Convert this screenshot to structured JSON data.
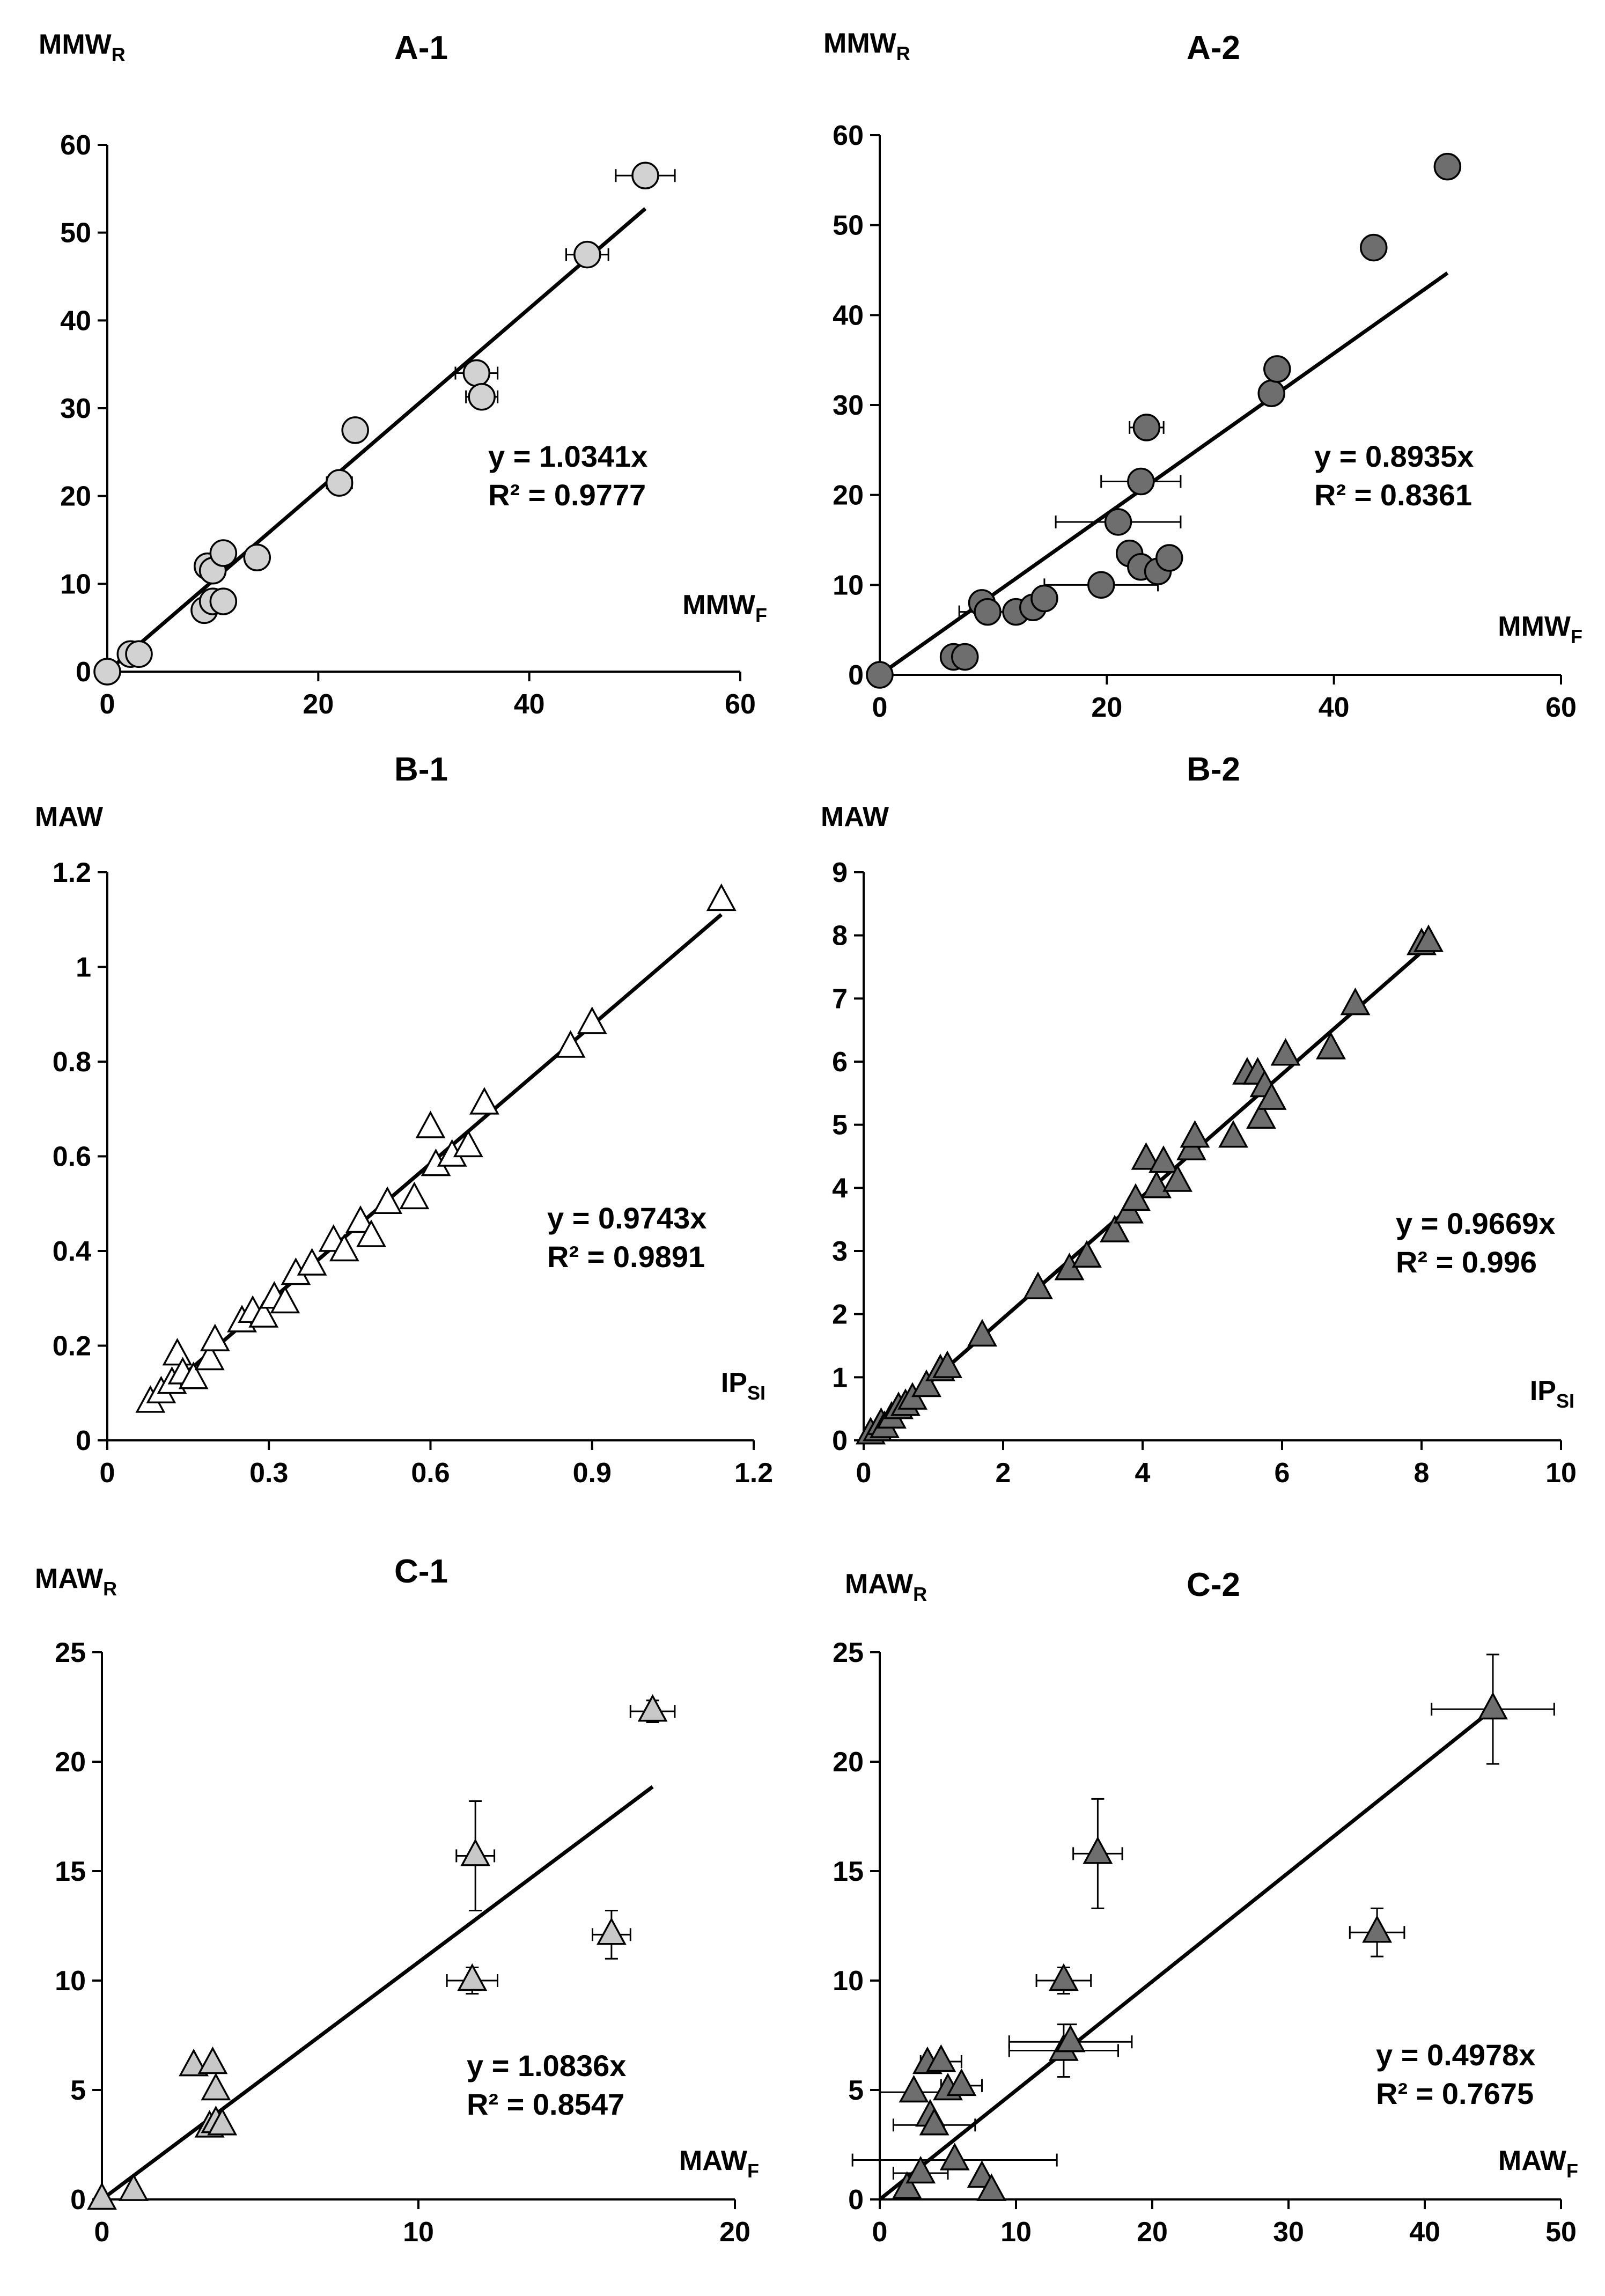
{
  "chart_data": [
    {
      "type": "scatter",
      "id": "A-1",
      "title": "A-1",
      "ylabel": {
        "base": "MMW",
        "sub": "R"
      },
      "xlabel": {
        "base": "MMW",
        "sub": "F"
      },
      "xlim": [
        0,
        60
      ],
      "ylim": [
        0,
        60
      ],
      "xticks": [
        0,
        20,
        40,
        60
      ],
      "yticks": [
        0,
        10,
        20,
        30,
        40,
        50,
        60
      ],
      "tick_decimals": 0,
      "marker": "circle",
      "fill": "#d2d2d2",
      "equation": "y = 1.0341x",
      "r2": "R² = 0.9777",
      "trend_slope": 1.0341,
      "trend_x_end": 51,
      "points": [
        {
          "x": 0,
          "y": 0
        },
        {
          "x": 2.2,
          "y": 2
        },
        {
          "x": 3,
          "y": 2
        },
        {
          "x": 9.2,
          "y": 7
        },
        {
          "x": 9.5,
          "y": 12
        },
        {
          "x": 10,
          "y": 8
        },
        {
          "x": 10,
          "y": 11.5
        },
        {
          "x": 11,
          "y": 8
        },
        {
          "x": 11,
          "y": 13.5
        },
        {
          "x": 14.2,
          "y": 13
        },
        {
          "x": 22,
          "y": 21.5,
          "xerr": 1.2
        },
        {
          "x": 23.5,
          "y": 27.5
        },
        {
          "x": 35,
          "y": 34,
          "xerr": 2
        },
        {
          "x": 35.5,
          "y": 31.3,
          "xerr": 1.5
        },
        {
          "x": 45.5,
          "y": 47.5,
          "xerr": 2
        },
        {
          "x": 51,
          "y": 56.5,
          "xerr": 2.8
        }
      ]
    },
    {
      "type": "scatter",
      "id": "A-2",
      "title": "A-2",
      "ylabel": {
        "base": "MMW",
        "sub": "R"
      },
      "xlabel": {
        "base": "MMW",
        "sub": "F"
      },
      "xlim": [
        0,
        60
      ],
      "ylim": [
        0,
        60
      ],
      "xticks": [
        0,
        20,
        40,
        60
      ],
      "yticks": [
        0,
        10,
        20,
        30,
        40,
        50,
        60
      ],
      "tick_decimals": 0,
      "marker": "circle",
      "fill": "#6e6e6e",
      "equation": "y = 0.8935x",
      "r2": "R² = 0.8361",
      "trend_slope": 0.8935,
      "trend_x_end": 50,
      "points": [
        {
          "x": 0,
          "y": 0
        },
        {
          "x": 6.5,
          "y": 2
        },
        {
          "x": 7.5,
          "y": 2
        },
        {
          "x": 9,
          "y": 8
        },
        {
          "x": 9.5,
          "y": 7,
          "xerr": 2.5
        },
        {
          "x": 12,
          "y": 7
        },
        {
          "x": 13.5,
          "y": 7.5
        },
        {
          "x": 14.5,
          "y": 8.5
        },
        {
          "x": 19.5,
          "y": 10,
          "xerr": 5
        },
        {
          "x": 21,
          "y": 17,
          "xerr": 5.5
        },
        {
          "x": 22,
          "y": 13.5
        },
        {
          "x": 23,
          "y": 21.5,
          "xerr": 3.5
        },
        {
          "x": 23,
          "y": 12
        },
        {
          "x": 23.5,
          "y": 27.5,
          "xerr": 1.5
        },
        {
          "x": 24.5,
          "y": 11.5
        },
        {
          "x": 25.5,
          "y": 13
        },
        {
          "x": 34.5,
          "y": 31.3
        },
        {
          "x": 35,
          "y": 34
        },
        {
          "x": 43.5,
          "y": 47.5
        },
        {
          "x": 50,
          "y": 56.5
        }
      ]
    },
    {
      "type": "scatter",
      "id": "B-1",
      "title": "B-1",
      "ylabel": {
        "base": "MAW",
        "sub": ""
      },
      "xlabel": {
        "base": "IP",
        "sub": "SI"
      },
      "xlim": [
        0,
        1.2
      ],
      "ylim": [
        0,
        1.2
      ],
      "xticks": [
        0,
        0.3,
        0.6,
        0.9,
        1.2
      ],
      "yticks": [
        0,
        0.2,
        0.4,
        0.6,
        0.8,
        1,
        1.2
      ],
      "xtick_labels": [
        "0",
        "0.3",
        "0.6",
        "0.9",
        "1.2"
      ],
      "ytick_labels": [
        "0",
        "0.2",
        "0.4",
        "0.6",
        "0.8",
        "1",
        "1.2"
      ],
      "tick_decimals": 1,
      "marker": "triangle",
      "fill": "#ffffff",
      "equation": "y = 0.9743x",
      "r2": "R² = 0.9891",
      "trend_slope": 0.9743,
      "trend_x_start": 0.08,
      "trend_x_end": 1.14,
      "points": [
        {
          "x": 0.08,
          "y": 0.08
        },
        {
          "x": 0.1,
          "y": 0.1
        },
        {
          "x": 0.12,
          "y": 0.12
        },
        {
          "x": 0.13,
          "y": 0.18
        },
        {
          "x": 0.14,
          "y": 0.14
        },
        {
          "x": 0.16,
          "y": 0.13
        },
        {
          "x": 0.19,
          "y": 0.17
        },
        {
          "x": 0.2,
          "y": 0.21
        },
        {
          "x": 0.25,
          "y": 0.25
        },
        {
          "x": 0.27,
          "y": 0.27
        },
        {
          "x": 0.29,
          "y": 0.26
        },
        {
          "x": 0.31,
          "y": 0.3
        },
        {
          "x": 0.33,
          "y": 0.29
        },
        {
          "x": 0.35,
          "y": 0.35
        },
        {
          "x": 0.38,
          "y": 0.37
        },
        {
          "x": 0.42,
          "y": 0.42
        },
        {
          "x": 0.44,
          "y": 0.4
        },
        {
          "x": 0.47,
          "y": 0.46
        },
        {
          "x": 0.49,
          "y": 0.43
        },
        {
          "x": 0.52,
          "y": 0.5
        },
        {
          "x": 0.57,
          "y": 0.51
        },
        {
          "x": 0.6,
          "y": 0.66
        },
        {
          "x": 0.61,
          "y": 0.58
        },
        {
          "x": 0.64,
          "y": 0.6
        },
        {
          "x": 0.67,
          "y": 0.62
        },
        {
          "x": 0.7,
          "y": 0.71
        },
        {
          "x": 0.86,
          "y": 0.83
        },
        {
          "x": 0.9,
          "y": 0.88
        },
        {
          "x": 1.14,
          "y": 1.14
        }
      ]
    },
    {
      "type": "scatter",
      "id": "B-2",
      "title": "B-2",
      "ylabel": {
        "base": "MAW",
        "sub": ""
      },
      "xlabel": {
        "base": "IP",
        "sub": "SI"
      },
      "xlim": [
        0,
        10
      ],
      "ylim": [
        0,
        9
      ],
      "xticks": [
        0,
        2,
        4,
        6,
        8,
        10
      ],
      "yticks": [
        0,
        1,
        2,
        3,
        4,
        5,
        6,
        7,
        8,
        9
      ],
      "tick_decimals": 0,
      "marker": "triangle",
      "fill": "#6e6e6e",
      "equation": "y = 0.9669x",
      "r2": "R² = 0.996",
      "trend_slope": 0.9669,
      "trend_x_end": 8.2,
      "points": [
        {
          "x": 0.1,
          "y": 0.1
        },
        {
          "x": 0.2,
          "y": 0.15
        },
        {
          "x": 0.25,
          "y": 0.25
        },
        {
          "x": 0.3,
          "y": 0.2
        },
        {
          "x": 0.4,
          "y": 0.35
        },
        {
          "x": 0.5,
          "y": 0.5
        },
        {
          "x": 0.6,
          "y": 0.55
        },
        {
          "x": 0.7,
          "y": 0.65
        },
        {
          "x": 0.9,
          "y": 0.85
        },
        {
          "x": 1.1,
          "y": 1.1
        },
        {
          "x": 1.2,
          "y": 1.15
        },
        {
          "x": 1.7,
          "y": 1.65
        },
        {
          "x": 2.5,
          "y": 2.4
        },
        {
          "x": 2.95,
          "y": 2.7
        },
        {
          "x": 3.2,
          "y": 2.9
        },
        {
          "x": 3.6,
          "y": 3.3
        },
        {
          "x": 3.8,
          "y": 3.6
        },
        {
          "x": 3.9,
          "y": 3.8
        },
        {
          "x": 4.05,
          "y": 4.45
        },
        {
          "x": 4.2,
          "y": 4.0
        },
        {
          "x": 4.3,
          "y": 4.4
        },
        {
          "x": 4.5,
          "y": 4.1
        },
        {
          "x": 4.7,
          "y": 4.6
        },
        {
          "x": 4.75,
          "y": 4.8
        },
        {
          "x": 5.3,
          "y": 4.8
        },
        {
          "x": 5.5,
          "y": 5.8
        },
        {
          "x": 5.65,
          "y": 5.8
        },
        {
          "x": 5.7,
          "y": 5.1
        },
        {
          "x": 5.75,
          "y": 5.6
        },
        {
          "x": 5.85,
          "y": 5.4
        },
        {
          "x": 6.05,
          "y": 6.1
        },
        {
          "x": 6.7,
          "y": 6.2
        },
        {
          "x": 7.05,
          "y": 6.9
        },
        {
          "x": 8.0,
          "y": 7.85
        },
        {
          "x": 8.1,
          "y": 7.9
        }
      ]
    },
    {
      "type": "scatter",
      "id": "C-1",
      "title": "C-1",
      "ylabel": {
        "base": "MAW",
        "sub": "R"
      },
      "xlabel": {
        "base": "MAW",
        "sub": "F"
      },
      "xlim": [
        0,
        20
      ],
      "ylim": [
        0,
        25
      ],
      "xticks": [
        0,
        10,
        20
      ],
      "yticks": [
        0,
        5,
        10,
        15,
        20,
        25
      ],
      "tick_decimals": 0,
      "marker": "triangle",
      "fill": "#c8c8c8",
      "equation": "y = 1.0836x",
      "r2": "R² = 0.8547",
      "trend_slope": 1.0836,
      "trend_x_end": 17.4,
      "points": [
        {
          "x": 0,
          "y": 0
        },
        {
          "x": 1,
          "y": 0.4
        },
        {
          "x": 2.9,
          "y": 6.1
        },
        {
          "x": 3.4,
          "y": 3.3
        },
        {
          "x": 3.5,
          "y": 6.2
        },
        {
          "x": 3.6,
          "y": 3.5
        },
        {
          "x": 3.6,
          "y": 5.0
        },
        {
          "x": 3.8,
          "y": 3.4
        },
        {
          "x": 11.7,
          "y": 10.0,
          "xerr": 0.8,
          "yerr": 0.6
        },
        {
          "x": 11.8,
          "y": 15.7,
          "xerr": 0.6,
          "yerr": 2.5
        },
        {
          "x": 16.1,
          "y": 12.1,
          "xerr": 0.6,
          "yerr": 1.1
        },
        {
          "x": 17.4,
          "y": 22.3,
          "xerr": 0.7,
          "yerr": 0.5
        }
      ]
    },
    {
      "type": "scatter",
      "id": "C-2",
      "title": "C-2",
      "ylabel": {
        "base": "MAW",
        "sub": "R"
      },
      "xlabel": {
        "base": "MAW",
        "sub": "F"
      },
      "xlim": [
        0,
        50
      ],
      "ylim": [
        0,
        25
      ],
      "xticks": [
        0,
        10,
        20,
        30,
        40,
        50
      ],
      "yticks": [
        0,
        5,
        10,
        15,
        20,
        25
      ],
      "tick_decimals": 0,
      "marker": "triangle",
      "fill": "#6e6e6e",
      "equation": "y = 0.4978x",
      "r2": "R² = 0.7675",
      "trend_slope": 0.4978,
      "trend_x_end": 45,
      "points": [
        {
          "x": 2,
          "y": 0.5
        },
        {
          "x": 2.5,
          "y": 4.9,
          "xerr": 2.5
        },
        {
          "x": 3,
          "y": 1.2,
          "xerr": 2
        },
        {
          "x": 3.5,
          "y": 6.2
        },
        {
          "x": 3.7,
          "y": 3.8
        },
        {
          "x": 4,
          "y": 3.4,
          "xerr": 3
        },
        {
          "x": 4.5,
          "y": 6.3,
          "xerr": 1.5
        },
        {
          "x": 5,
          "y": 5.0
        },
        {
          "x": 5.5,
          "y": 1.8,
          "xerr": 7.5
        },
        {
          "x": 6,
          "y": 5.2,
          "xerr": 1.5
        },
        {
          "x": 7.5,
          "y": 1.0
        },
        {
          "x": 8.2,
          "y": 0.4
        },
        {
          "x": 13.5,
          "y": 6.8,
          "xerr": 4,
          "yerr": 1.2
        },
        {
          "x": 13.5,
          "y": 10.0,
          "xerr": 2,
          "yerr": 0.6
        },
        {
          "x": 14,
          "y": 7.2,
          "xerr": 4.5,
          "yerr": 0.8
        },
        {
          "x": 16,
          "y": 15.8,
          "xerr": 1.8,
          "yerr": 2.5
        },
        {
          "x": 36.5,
          "y": 12.2,
          "xerr": 2,
          "yerr": 1.1
        },
        {
          "x": 45,
          "y": 22.4,
          "xerr": 4.5,
          "yerr": 2.5
        }
      ]
    }
  ]
}
